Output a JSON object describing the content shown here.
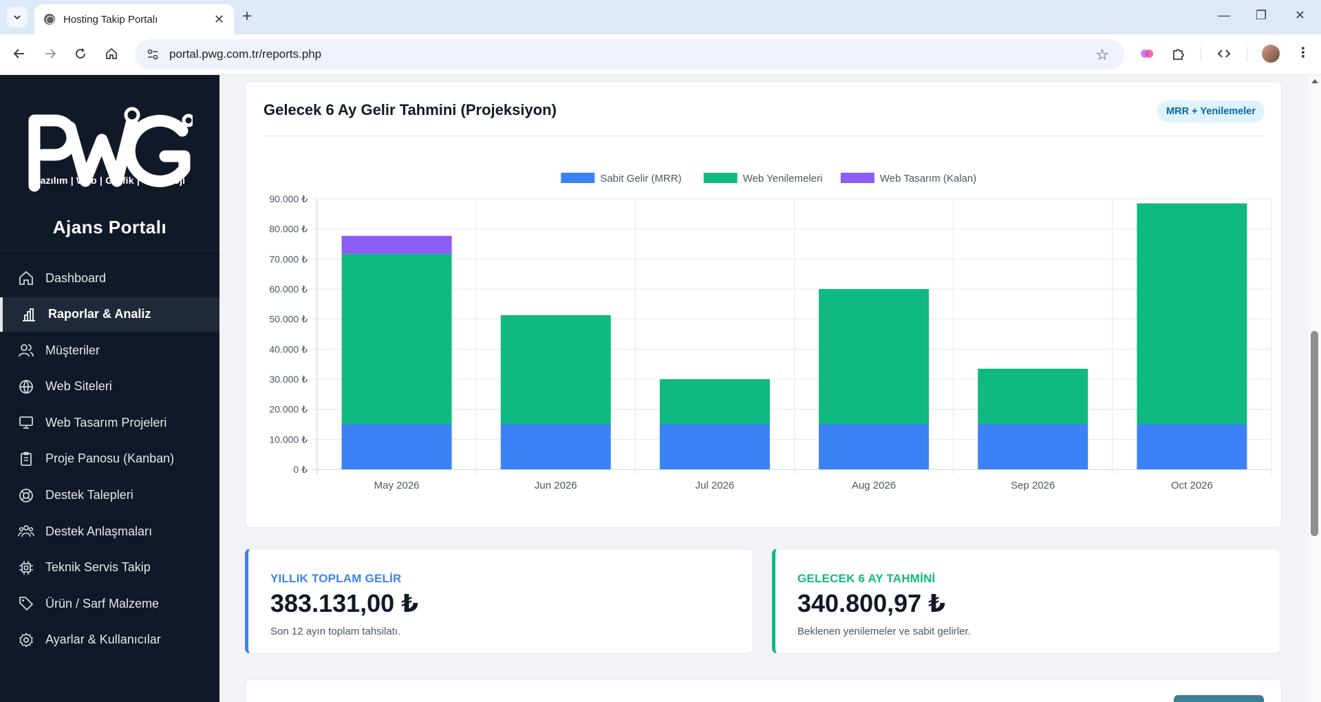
{
  "browser": {
    "tab_title": "Hosting Takip Portalı",
    "url": "portal.pwg.com.tr/reports.php"
  },
  "sidebar": {
    "logo_text": "PWG",
    "logo_subtitle": "Yazılım | Web | Grafik | Teknoloji",
    "portal_title": "Ajans Portalı",
    "items": [
      {
        "label": "Dashboard",
        "icon": "home-icon"
      },
      {
        "label": "Raporlar & Analiz",
        "icon": "bar-chart-icon",
        "active": true
      },
      {
        "label": "Müşteriler",
        "icon": "users-icon"
      },
      {
        "label": "Web Siteleri",
        "icon": "globe-icon"
      },
      {
        "label": "Web Tasarım Projeleri",
        "icon": "monitor-icon"
      },
      {
        "label": "Proje Panosu (Kanban)",
        "icon": "clipboard-icon"
      },
      {
        "label": "Destek Talepleri",
        "icon": "lifebuoy-icon"
      },
      {
        "label": "Destek Anlaşmaları",
        "icon": "team-icon"
      },
      {
        "label": "Teknik Servis Takip",
        "icon": "chip-icon"
      },
      {
        "label": "Ürün / Sarf Malzeme",
        "icon": "tag-icon"
      },
      {
        "label": "Ayarlar & Kullanıcılar",
        "icon": "settings-icon"
      }
    ]
  },
  "forecast_card": {
    "title": "Gelecek 6 Ay Gelir Tahmini (Projeksiyon)",
    "badge": "MRR + Yenilemeler"
  },
  "chart_data": {
    "type": "bar",
    "stacked": true,
    "categories": [
      "May 2026",
      "Jun 2026",
      "Jul 2026",
      "Aug 2026",
      "Sep 2026",
      "Oct 2026"
    ],
    "series": [
      {
        "name": "Sabit Gelir (MRR)",
        "color": "#3b82f6",
        "values": [
          15000,
          15000,
          15000,
          15000,
          15000,
          15000
        ]
      },
      {
        "name": "Web Yenilemeleri",
        "color": "#10b981",
        "values": [
          56700,
          36300,
          15000,
          45000,
          18500,
          73500
        ]
      },
      {
        "name": "Web Tasarım (Kalan)",
        "color": "#8b5cf6",
        "values": [
          6000,
          0,
          0,
          0,
          0,
          0
        ]
      }
    ],
    "ylim": [
      0,
      90000
    ],
    "yticks": [
      0,
      10000,
      20000,
      30000,
      40000,
      50000,
      60000,
      70000,
      80000,
      90000
    ],
    "ytick_labels": [
      "0 ₺",
      "10.000 ₺",
      "20.000 ₺",
      "30.000 ₺",
      "40.000 ₺",
      "50.000 ₺",
      "60.000 ₺",
      "70.000 ₺",
      "80.000 ₺",
      "90.000 ₺"
    ],
    "legend_position": "top",
    "grid": true
  },
  "stats": [
    {
      "label": "YILLIK TOPLAM GELİR",
      "value": "383.131,00 ₺",
      "desc": "Son 12 ayın toplam tahsilatı.",
      "color": "#3b82f6"
    },
    {
      "label": "GELECEK 6 AY TAHMİNİ",
      "value": "340.800,97 ₺",
      "desc": "Beklenen yenilemeler ve sabit gelirler.",
      "color": "#10b981"
    }
  ]
}
